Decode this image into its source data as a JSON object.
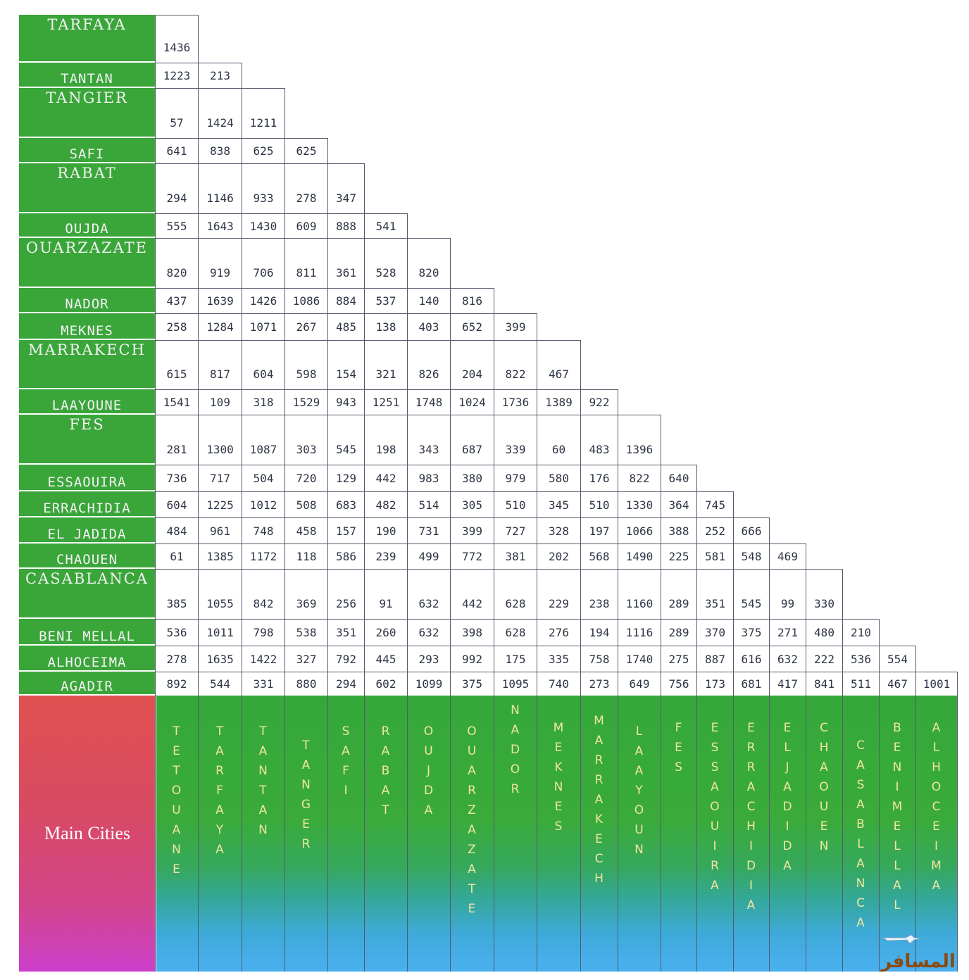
{
  "row_labels": [
    "TARFAYA",
    "TANTAN",
    "TANGIER",
    "SAFI",
    "RABAT",
    "OUJDA",
    "OUARZAZATE",
    "NADOR",
    "MEKNES",
    "MARRAKECH",
    "LAAYOUNE",
    "FES",
    "ESSAOUIRA",
    "ERRACHIDIA",
    "EL JADIDA",
    "CHAOUEN",
    "CASABLANCA",
    "BENI MELLAL",
    "ALHOCEIMA",
    "AGADIR"
  ],
  "column_labels": [
    "TETOUANE",
    "TARFAYA",
    "TANTAN",
    "TANGER",
    "SAFI",
    "RABAT",
    "OUJDA",
    "OUARZAZATE",
    "NADOR",
    "MEKNES",
    "MARRAKECH",
    "LAAYOUN",
    "FES",
    "ESSAOUIRA",
    "ERRACHIDIA",
    "ELJADIDA",
    "CHAOUEN",
    "CASABLANCA",
    "BENIMELLAL",
    "ALHOCEIMA"
  ],
  "corner_label": "Main Cities",
  "distances": [
    [
      "1436"
    ],
    [
      "1223",
      "213"
    ],
    [
      "57",
      "1424",
      "1211"
    ],
    [
      "641",
      "838",
      "625",
      "625"
    ],
    [
      "294",
      "1146",
      "933",
      "278",
      "347"
    ],
    [
      "555",
      "1643",
      "1430",
      "609",
      "888",
      "541"
    ],
    [
      "820",
      "919",
      "706",
      "811",
      "361",
      "528",
      "820"
    ],
    [
      "437",
      "1639",
      "1426",
      "1086",
      "884",
      "537",
      "140",
      "816"
    ],
    [
      "258",
      "1284",
      "1071",
      "267",
      "485",
      "138",
      "403",
      "652",
      "399"
    ],
    [
      "615",
      "817",
      "604",
      "598",
      "154",
      "321",
      "826",
      "204",
      "822",
      "467"
    ],
    [
      "1541",
      "109",
      "318",
      "1529",
      "943",
      "1251",
      "1748",
      "1024",
      "1736",
      "1389",
      "922"
    ],
    [
      "281",
      "1300",
      "1087",
      "303",
      "545",
      "198",
      "343",
      "687",
      "339",
      "60",
      "483",
      "1396"
    ],
    [
      "736",
      "717",
      "504",
      "720",
      "129",
      "442",
      "983",
      "380",
      "979",
      "580",
      "176",
      "822",
      "640"
    ],
    [
      "604",
      "1225",
      "1012",
      "508",
      "683",
      "482",
      "514",
      "305",
      "510",
      "345",
      "510",
      "1330",
      "364",
      "745"
    ],
    [
      "484",
      "961",
      "748",
      "458",
      "157",
      "190",
      "731",
      "399",
      "727",
      "328",
      "197",
      "1066",
      "388",
      "252",
      "666"
    ],
    [
      "61",
      "1385",
      "1172",
      "118",
      "586",
      "239",
      "499",
      "772",
      "381",
      "202",
      "568",
      "1490",
      "225",
      "581",
      "548",
      "469"
    ],
    [
      "385",
      "1055",
      "842",
      "369",
      "256",
      "91",
      "632",
      "442",
      "628",
      "229",
      "238",
      "1160",
      "289",
      "351",
      "545",
      "99",
      "330"
    ],
    [
      "536",
      "1011",
      "798",
      "538",
      "351",
      "260",
      "632",
      "398",
      "628",
      "276",
      "194",
      "1116",
      "289",
      "370",
      "375",
      "271",
      "480",
      "210"
    ],
    [
      "278",
      "1635",
      "1422",
      "327",
      "792",
      "445",
      "293",
      "992",
      "175",
      "335",
      "758",
      "1740",
      "275",
      "887",
      "616",
      "632",
      "222",
      "536",
      "554"
    ],
    [
      "892",
      "544",
      "331",
      "880",
      "294",
      "602",
      "1099",
      "375",
      "1095",
      "740",
      "273",
      "649",
      "756",
      "173",
      "681",
      "417",
      "841",
      "511",
      "467",
      "1001"
    ]
  ],
  "colors": {
    "label_green": "#3aa63a",
    "column_label_text": "#f0e6a0",
    "corner_top": "#e05050",
    "corner_bottom": "#cc40cc",
    "cell_text": "#2d3444"
  },
  "logo": {
    "text": "المسافر",
    "icon": "airplane-icon"
  }
}
